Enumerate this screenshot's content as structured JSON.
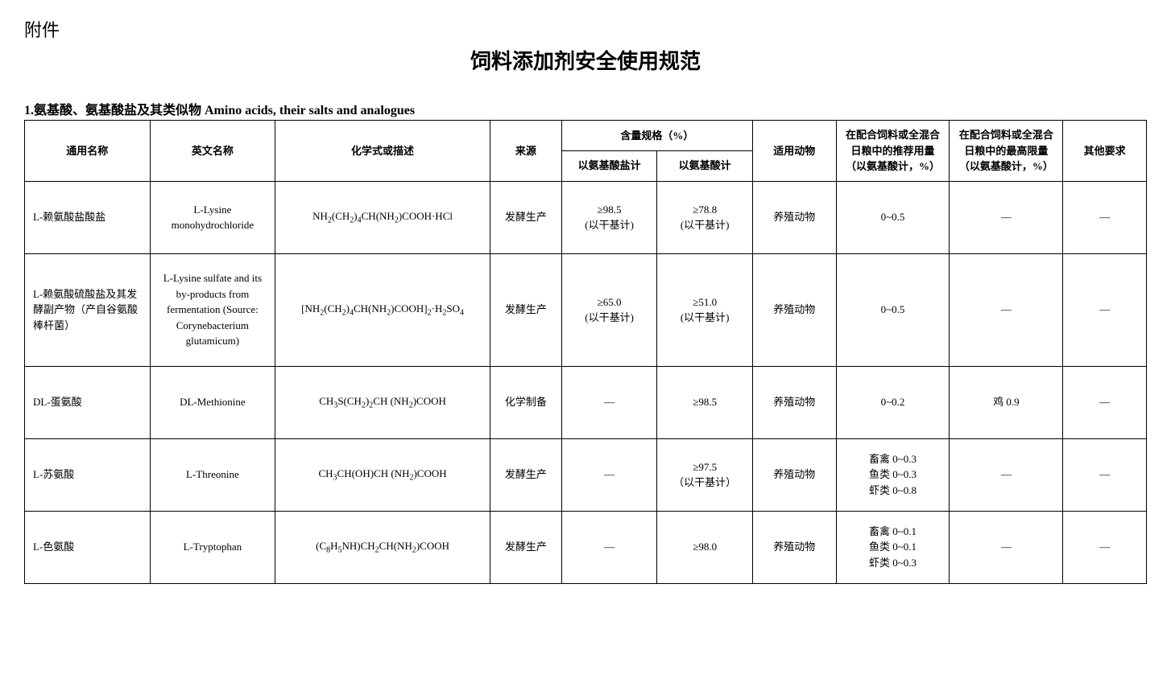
{
  "labels": {
    "attachment": "附件",
    "title": "饲料添加剂安全使用规范",
    "section": "1.氨基酸、氨基酸盐及其类似物  Amino acids, their salts and analogues"
  },
  "headers": {
    "common_name": "通用名称",
    "english_name": "英文名称",
    "formula": "化学式或描述",
    "source": "来源",
    "spec_group": "含量规格（%）",
    "spec_salt": "以氨基酸盐计",
    "spec_acid": "以氨基酸计",
    "animal": "适用动物",
    "recommended": "在配合饲料或全混合日粮中的推荐用量（以氨基酸计，%）",
    "max": "在配合饲料或全混合日粮中的最高限量（以氨基酸计，%）",
    "other": "其他要求"
  },
  "rows": [
    {
      "name": "L-赖氨酸盐酸盐",
      "eng": "L-Lysine monohydrochloride",
      "formula_html": "NH<span class=\"sub\">2</span>(CH<span class=\"sub\">2</span>)<span class=\"sub\">4</span>CH(NH<span class=\"sub\">2</span>)COOH·HCl",
      "source": "发酵生产",
      "spec_salt": "≥98.5\n(以干基计)",
      "spec_acid": "≥78.8\n(以干基计)",
      "animal": "养殖动物",
      "recommended": "0~0.5",
      "max": "—",
      "other": "—"
    },
    {
      "name": "L-赖氨酸硫酸盐及其发酵副产物（产自谷氨酸棒杆菌）",
      "eng": "L-Lysine sulfate and its by-products from fermentation (Source: Corynebacterium glutamicum)",
      "formula_html": "[NH<span class=\"sub\">2</span>(CH<span class=\"sub\">2</span>)<span class=\"sub\">4</span>CH(NH<span class=\"sub\">2</span>)COOH]<span class=\"sub\">2</span>·H<span class=\"sub\">2</span>SO<span class=\"sub\">4</span>",
      "source": "发酵生产",
      "spec_salt": "≥65.0\n(以干基计)",
      "spec_acid": "≥51.0\n(以干基计)",
      "animal": "养殖动物",
      "recommended": "0~0.5",
      "max": "—",
      "other": "—",
      "tall": true
    },
    {
      "name": "DL-蛋氨酸",
      "eng": "DL-Methionine",
      "formula_html": "CH<span class=\"sub\">3</span>S(CH<span class=\"sub\">2</span>)<span class=\"sub\">2</span>CH (NH<span class=\"sub\">2</span>)COOH",
      "source": "化学制备",
      "spec_salt": "—",
      "spec_acid": "≥98.5",
      "animal": "养殖动物",
      "recommended": "0~0.2",
      "max": "鸡  0.9",
      "other": "—"
    },
    {
      "name": "L-苏氨酸",
      "eng": "L-Threonine",
      "formula_html": "CH<span class=\"sub\">3</span>CH(OH)CH (NH<span class=\"sub\">2</span>)COOH",
      "source": "发酵生产",
      "spec_salt": "—",
      "spec_acid": "≥97.5\n（以干基计）",
      "animal": "养殖动物",
      "recommended": "畜禽  0~0.3\n鱼类  0~0.3\n虾类  0~0.8",
      "max": "—",
      "other": "—"
    },
    {
      "name": "L-色氨酸",
      "eng": "L-Tryptophan",
      "formula_html": "(C<span class=\"sub\">8</span>H<span class=\"sub\">5</span>NH)CH<span class=\"sub\">2</span>CH(NH<span class=\"sub\">2</span>)COOH",
      "source": "发酵生产",
      "spec_salt": "—",
      "spec_acid": "≥98.0",
      "animal": "养殖动物",
      "recommended": "畜禽  0~0.1\n鱼类  0~0.1\n虾类  0~0.3",
      "max": "—",
      "other": "—"
    }
  ]
}
